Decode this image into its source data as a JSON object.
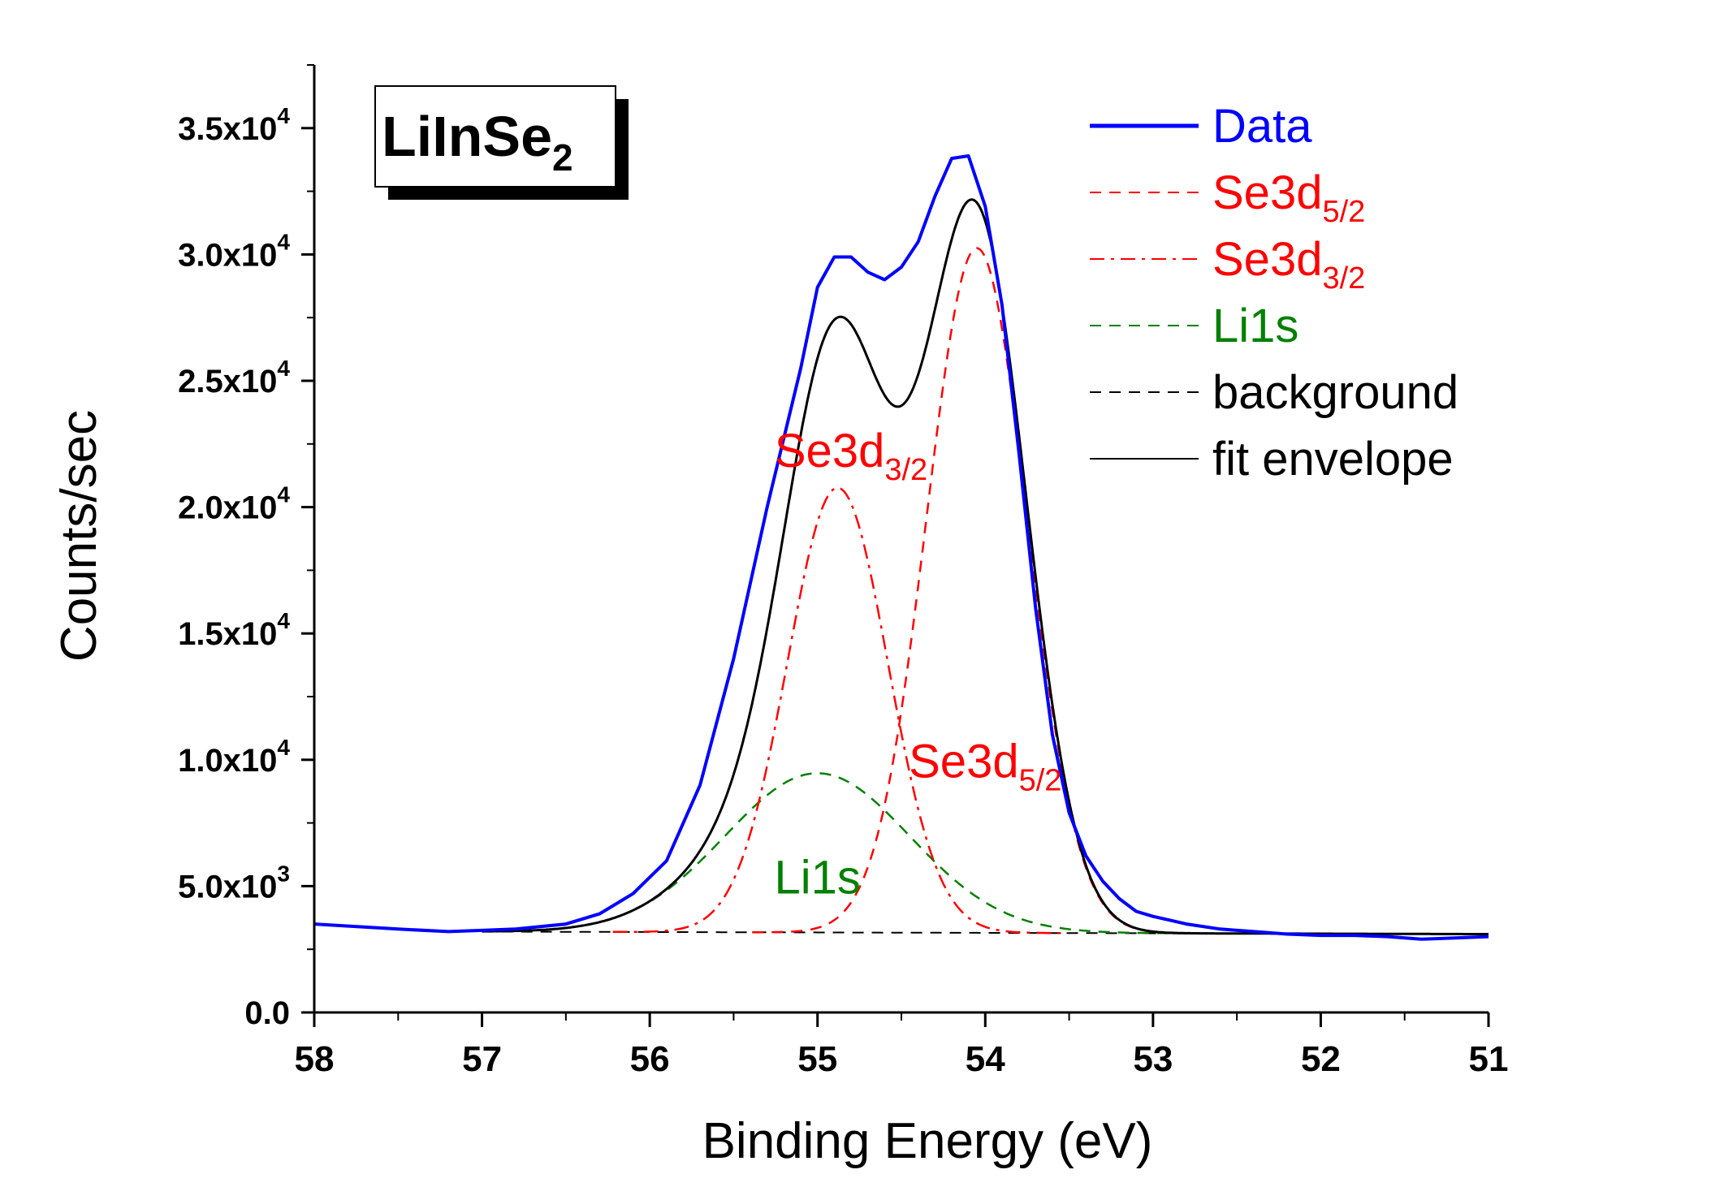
{
  "chart_data": {
    "type": "line",
    "title": "LiInSe",
    "title_subscript": "2",
    "xlabel": "Binding Energy (eV)",
    "ylabel": "Counts/sec",
    "xlim": [
      58,
      51
    ],
    "ylim": [
      0,
      37500
    ],
    "x_ticks": [
      58,
      57,
      56,
      55,
      54,
      53,
      52,
      51
    ],
    "x_tick_labels": [
      "58",
      "57",
      "56",
      "55",
      "54",
      "53",
      "52",
      "51"
    ],
    "y_ticks": [
      0,
      5000,
      10000,
      15000,
      20000,
      25000,
      30000,
      35000
    ],
    "y_tick_labels": [
      {
        "mantissa": "0.0",
        "exp": ""
      },
      {
        "mantissa": "5.0x10",
        "exp": "3"
      },
      {
        "mantissa": "1.0x10",
        "exp": "4"
      },
      {
        "mantissa": "1.5x10",
        "exp": "4"
      },
      {
        "mantissa": "2.0x10",
        "exp": "4"
      },
      {
        "mantissa": "2.5x10",
        "exp": "4"
      },
      {
        "mantissa": "3.0x10",
        "exp": "4"
      },
      {
        "mantissa": "3.5x10",
        "exp": "4"
      }
    ],
    "series": [
      {
        "name": "Data",
        "color": "#0000ff",
        "style": "solid",
        "x": [
          58.0,
          57.5,
          57.2,
          57.0,
          56.8,
          56.5,
          56.3,
          56.1,
          55.9,
          55.7,
          55.5,
          55.3,
          55.1,
          55.0,
          54.9,
          54.8,
          54.7,
          54.6,
          54.5,
          54.4,
          54.3,
          54.2,
          54.1,
          54.0,
          53.9,
          53.8,
          53.7,
          53.6,
          53.5,
          53.4,
          53.3,
          53.2,
          53.1,
          53.0,
          52.8,
          52.6,
          52.4,
          52.2,
          52.0,
          51.8,
          51.6,
          51.4,
          51.2,
          51.0
        ],
        "y": [
          3500,
          3300,
          3200,
          3250,
          3300,
          3500,
          3900,
          4700,
          6000,
          9000,
          14000,
          20000,
          25500,
          28700,
          29900,
          29900,
          29300,
          29000,
          29500,
          30500,
          32300,
          33800,
          33900,
          31900,
          28000,
          22200,
          16000,
          11000,
          7900,
          6200,
          5200,
          4500,
          4000,
          3800,
          3500,
          3300,
          3200,
          3100,
          3050,
          3050,
          3000,
          2900,
          2950,
          3000
        ]
      },
      {
        "name": "Se3d5/2",
        "color": "#ff0000",
        "style": "dashed",
        "center": 54.05,
        "amplitude": 27100,
        "sigma": 0.3
      },
      {
        "name": "Se3d3/2",
        "color": "#ff0000",
        "style": "dashdot",
        "center": 54.88,
        "amplitude": 17600,
        "sigma": 0.3
      },
      {
        "name": "Li1s",
        "color": "#008000",
        "style": "dashed",
        "center": 55.0,
        "amplitude": 6300,
        "sigma": 0.55
      },
      {
        "name": "background",
        "color": "#000000",
        "style": "dashed",
        "x": [
          57.0,
          51.0
        ],
        "y": [
          3200,
          3100
        ]
      },
      {
        "name": "fit envelope",
        "color": "#000000",
        "style": "solid",
        "components": [
          "Se3d5/2",
          "Se3d3/2",
          "Li1s",
          "background"
        ]
      }
    ],
    "legend": {
      "position": "top-right",
      "entries": [
        {
          "label": "Data",
          "sub": "",
          "color": "#0000ff",
          "style": "solid"
        },
        {
          "label": "Se3d",
          "sub": "5/2",
          "color": "#ff0000",
          "style": "dashed"
        },
        {
          "label": "Se3d",
          "sub": "3/2",
          "color": "#ff0000",
          "style": "dashdot"
        },
        {
          "label": "Li1s",
          "sub": "",
          "color": "#008000",
          "style": "dashed"
        },
        {
          "label": "background",
          "sub": "",
          "color": "#000000",
          "style": "dashed"
        },
        {
          "label": "fit envelope",
          "sub": "",
          "color": "#000000",
          "style": "solid"
        }
      ]
    },
    "annotations": [
      {
        "label": "Se3d",
        "sub": "3/2",
        "color": "#ff0000",
        "x": 54.8,
        "y": 21600
      },
      {
        "label": "Se3d",
        "sub": "5/2",
        "color": "#ff0000",
        "x": 54.0,
        "y": 9300
      },
      {
        "label": "Li1s",
        "sub": "",
        "color": "#008000",
        "x": 55.0,
        "y": 4700
      }
    ]
  }
}
